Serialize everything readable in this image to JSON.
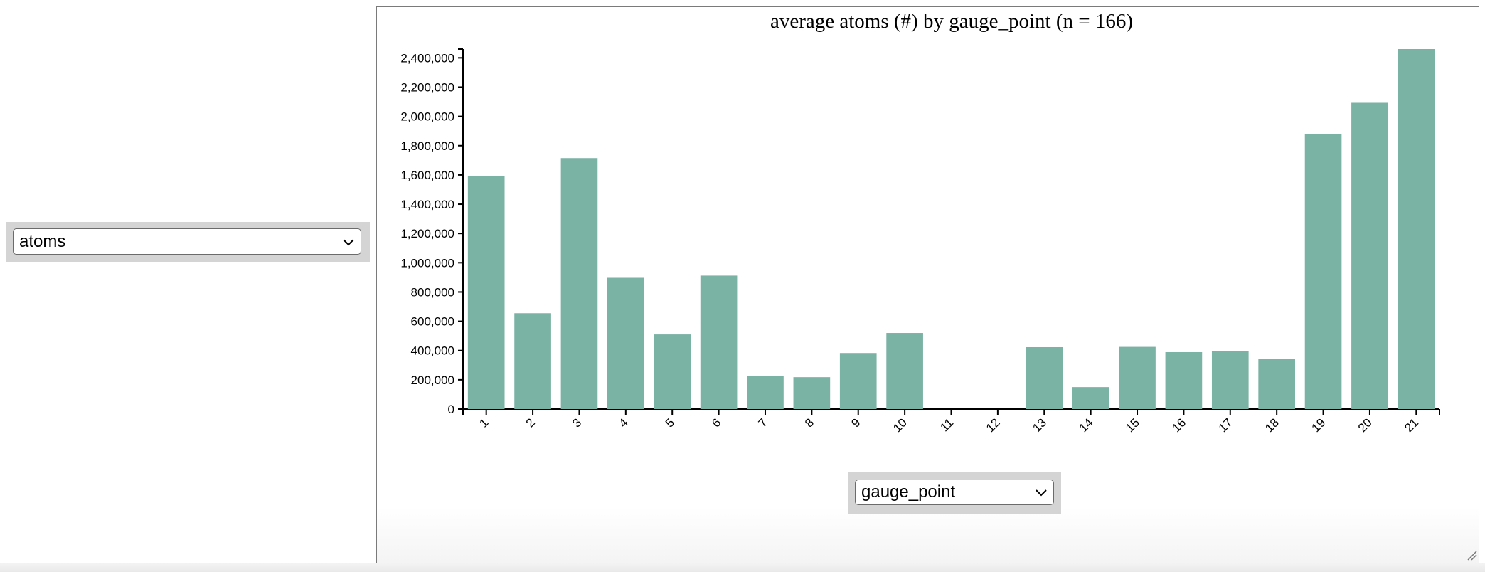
{
  "controls": {
    "y_select_value": "atoms",
    "x_select_value": "gauge_point"
  },
  "colors": {
    "bar": "#7ab2a3",
    "axis": "#000000"
  },
  "chart_data": {
    "type": "bar",
    "title": "average atoms (#) by gauge_point (n = 166)",
    "xlabel": "",
    "ylabel": "",
    "categories": [
      "1",
      "2",
      "3",
      "4",
      "5",
      "6",
      "7",
      "8",
      "9",
      "10",
      "11",
      "12",
      "13",
      "14",
      "15",
      "16",
      "17",
      "18",
      "19",
      "20",
      "21"
    ],
    "values": [
      1590000,
      655000,
      1715000,
      897000,
      510000,
      912000,
      228000,
      218000,
      383000,
      520000,
      0,
      0,
      423000,
      150000,
      425000,
      389000,
      397000,
      342000,
      1877000,
      2093000,
      2460000
    ],
    "ylim": [
      0,
      2460000
    ],
    "yticks": [
      0,
      200000,
      400000,
      600000,
      800000,
      1000000,
      1200000,
      1400000,
      1600000,
      1800000,
      2000000,
      2200000,
      2400000
    ],
    "ytick_labels": [
      "0",
      "200,000",
      "400,000",
      "600,000",
      "800,000",
      "1,000,000",
      "1,200,000",
      "1,400,000",
      "1,600,000",
      "1,800,000",
      "2,000,000",
      "2,200,000",
      "2,400,000"
    ],
    "grid": false,
    "legend": "none"
  }
}
